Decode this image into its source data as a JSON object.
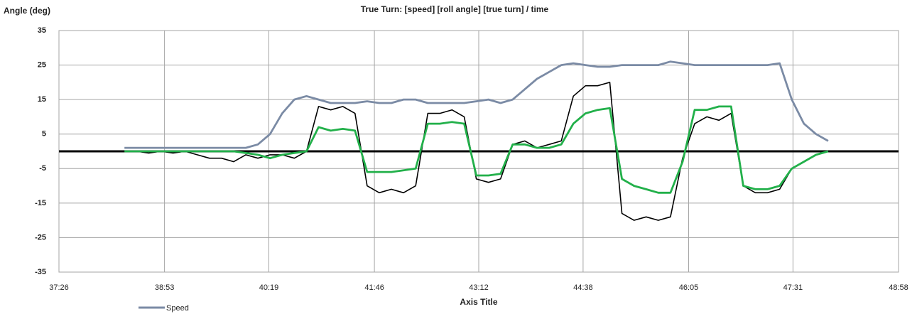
{
  "chart_data": {
    "type": "line",
    "title": "True Turn:  [speed] [roll angle] [true turn] / time",
    "y_label": "Angle (deg)",
    "x_label": "Axis Title",
    "x": [
      2300,
      2310,
      2320,
      2330,
      2340,
      2350,
      2360,
      2370,
      2380,
      2390,
      2400,
      2410,
      2420,
      2430,
      2440,
      2450,
      2460,
      2470,
      2480,
      2490,
      2500,
      2510,
      2520,
      2530,
      2540,
      2550,
      2560,
      2570,
      2580,
      2590,
      2600,
      2610,
      2620,
      2630,
      2640,
      2650,
      2660,
      2670,
      2680,
      2690,
      2700,
      2710,
      2720,
      2730,
      2740,
      2750,
      2760,
      2770,
      2780,
      2790,
      2800,
      2810,
      2820,
      2830,
      2840,
      2850,
      2860,
      2870,
      2880
    ],
    "series": [
      {
        "name": "Speed",
        "color": "#7b8ba5",
        "values": [
          1,
          1,
          1,
          1,
          1,
          1,
          1,
          1,
          1,
          1,
          1,
          2,
          5,
          11,
          15,
          16,
          15,
          14,
          14,
          14,
          14.5,
          14,
          14,
          15,
          15,
          14,
          14,
          14,
          14,
          14.5,
          15,
          14,
          15,
          18,
          21,
          23,
          25,
          25.5,
          25,
          24.5,
          24.5,
          25,
          25,
          25,
          25,
          26,
          25.5,
          25,
          25,
          25,
          25,
          25,
          25,
          25,
          25.5,
          15,
          8,
          5,
          3
        ]
      },
      {
        "color": "#000000",
        "values": [
          0,
          0,
          -0.5,
          0,
          -0.5,
          0,
          -1,
          -2,
          -2,
          -3,
          -1,
          -2,
          -1,
          -1,
          -2,
          0,
          13,
          12,
          13,
          11,
          -10,
          -12,
          -11,
          -12,
          -10,
          11,
          11,
          12,
          10,
          -8,
          -9,
          -8,
          2,
          3,
          1,
          2,
          3,
          16,
          19,
          19,
          20,
          -18,
          -20,
          -19,
          -20,
          -19,
          -2,
          8,
          10,
          9,
          11,
          -10,
          -12,
          -12,
          -11,
          -5,
          -3,
          -1,
          0
        ]
      },
      {
        "color": "#22b04a",
        "values": [
          0,
          0,
          0,
          0,
          0,
          0,
          0,
          0,
          0,
          0,
          -0.5,
          -1,
          -2,
          -1,
          -0.5,
          0,
          7,
          6,
          6.5,
          6,
          -6,
          -6,
          -6,
          -5.5,
          -5,
          8,
          8,
          8.5,
          8,
          -7,
          -7,
          -6.5,
          2,
          2,
          1,
          1,
          2,
          8,
          11,
          12,
          12.5,
          -8,
          -10,
          -11,
          -12,
          -12,
          -3,
          12,
          12,
          13,
          13,
          -10,
          -11,
          -11,
          -10,
          -5,
          -3,
          -1,
          0
        ]
      }
    ],
    "xlim": [
      2246,
      2938
    ],
    "xticks": [
      {
        "value": 2246,
        "label": "37:26"
      },
      {
        "value": 2333,
        "label": "38:53"
      },
      {
        "value": 2419,
        "label": "40:19"
      },
      {
        "value": 2506,
        "label": "41:46"
      },
      {
        "value": 2592,
        "label": "43:12"
      },
      {
        "value": 2678,
        "label": "44:38"
      },
      {
        "value": 2765,
        "label": "46:05"
      },
      {
        "value": 2851,
        "label": "47:31"
      },
      {
        "value": 2938,
        "label": "48:58"
      }
    ],
    "ylim": [
      -35,
      35
    ],
    "yticks": [
      -35,
      -25,
      -15,
      -5,
      5,
      15,
      25,
      35
    ],
    "grid": true,
    "legend": "bottom-left"
  }
}
